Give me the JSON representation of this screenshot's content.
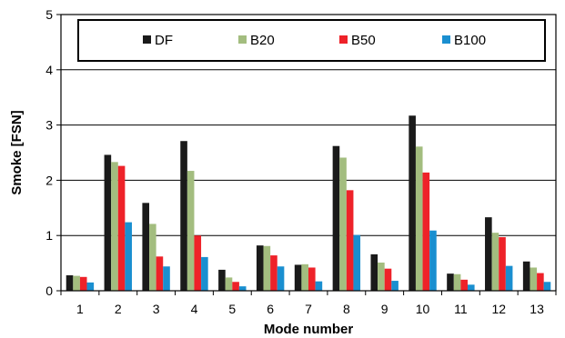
{
  "chart_data": {
    "type": "bar",
    "title": "",
    "xlabel": "Mode number",
    "ylabel": "Smoke [FSN]",
    "ylim": [
      0,
      5
    ],
    "yticks": [
      "0",
      "1",
      "2",
      "3",
      "4",
      "5"
    ],
    "grid": true,
    "legend_position": "top-inside",
    "categories": [
      "1",
      "2",
      "3",
      "4",
      "5",
      "6",
      "7",
      "8",
      "9",
      "10",
      "11",
      "12",
      "13"
    ],
    "series": [
      {
        "name": "DF",
        "color": "#1a1a1a",
        "values": [
          0.28,
          2.46,
          1.59,
          2.71,
          0.38,
          0.82,
          0.47,
          2.62,
          0.66,
          3.17,
          0.31,
          1.33,
          0.53
        ]
      },
      {
        "name": "B20",
        "color": "#a3bd7f",
        "values": [
          0.27,
          2.33,
          1.21,
          2.17,
          0.24,
          0.81,
          0.48,
          2.41,
          0.51,
          2.61,
          0.3,
          1.05,
          0.42
        ]
      },
      {
        "name": "B50",
        "color": "#ee2229",
        "values": [
          0.25,
          2.26,
          0.62,
          1.0,
          0.16,
          0.64,
          0.42,
          1.82,
          0.4,
          2.14,
          0.2,
          0.97,
          0.32
        ]
      },
      {
        "name": "B100",
        "color": "#1a8fd0",
        "values": [
          0.15,
          1.24,
          0.44,
          0.61,
          0.08,
          0.44,
          0.17,
          1.01,
          0.18,
          1.09,
          0.11,
          0.45,
          0.16
        ]
      }
    ]
  }
}
